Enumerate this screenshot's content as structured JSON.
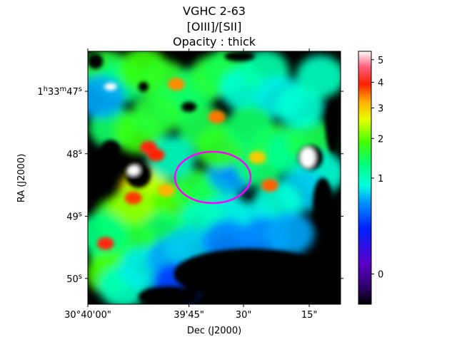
{
  "chart_data": {
    "type": "heatmap",
    "title_lines": [
      "VGHC 2-63",
      "[OIII]/[SII]",
      "Opacity : thick"
    ],
    "xlabel": "Dec (J2000)",
    "ylabel": "RA (J2000)",
    "x_ticks": [
      "30°40'00\"",
      "39'45\"",
      "30\"",
      "15\""
    ],
    "y_ticks": [
      {
        "h": "1",
        "m": "33",
        "s": "47",
        "full": true
      },
      {
        "s": "48"
      },
      {
        "s": "49"
      },
      {
        "s": "50"
      }
    ],
    "colorbar": {
      "colormap": "gist_ncar-like (black, purple, blue, cyan, green, yellow, orange, red, pink, white)",
      "scale": "nonlinear (sqrt-like)",
      "range": [
        -0.1,
        5.4
      ],
      "ticks": [
        "0",
        "1",
        "2",
        "3",
        "4",
        "5"
      ],
      "tick_values": [
        0,
        1,
        2,
        3,
        4,
        5
      ]
    },
    "annotation": {
      "shape": "ellipse",
      "color": "#ff00ff"
    },
    "masked_color": "#ffffff",
    "background_color": "#000000",
    "blobs": [
      {
        "x": 0.22,
        "y": 0.55,
        "v": 2.8
      },
      {
        "x": 0.25,
        "y": 0.57,
        "v": 2.4
      },
      {
        "x": 0.12,
        "y": 0.66,
        "v": 1.8
      },
      {
        "x": 0.18,
        "y": 0.62,
        "v": 2.2
      },
      {
        "x": 0.35,
        "y": 0.6,
        "v": 1.9
      },
      {
        "x": 0.43,
        "y": 0.55,
        "v": 1.6
      },
      {
        "x": 0.5,
        "y": 0.58,
        "v": 1.5
      },
      {
        "x": 0.57,
        "y": 0.48,
        "v": 0.6
      },
      {
        "x": 0.6,
        "y": 0.43,
        "v": 0.5
      },
      {
        "x": 0.68,
        "y": 0.45,
        "v": 1.4
      },
      {
        "x": 0.74,
        "y": 0.37,
        "v": 1.6
      },
      {
        "x": 0.8,
        "y": 0.4,
        "v": 1.2
      },
      {
        "x": 0.88,
        "y": 0.35,
        "v": 1.5
      },
      {
        "x": 0.92,
        "y": 0.48,
        "v": 0.9
      },
      {
        "x": 0.85,
        "y": 0.55,
        "v": 0.7
      },
      {
        "x": 0.75,
        "y": 0.6,
        "v": 0.9
      },
      {
        "x": 0.65,
        "y": 0.68,
        "v": 0.8
      },
      {
        "x": 0.55,
        "y": 0.65,
        "v": 0.8
      },
      {
        "x": 0.45,
        "y": 0.68,
        "v": 1.0
      },
      {
        "x": 0.3,
        "y": 0.72,
        "v": 1.4
      },
      {
        "x": 0.18,
        "y": 0.76,
        "v": 1.6
      },
      {
        "x": 0.1,
        "y": 0.8,
        "v": 1.5
      },
      {
        "x": 0.06,
        "y": 0.72,
        "v": 1.3
      },
      {
        "x": 0.09,
        "y": 0.88,
        "v": 1.9
      },
      {
        "x": 0.14,
        "y": 0.93,
        "v": 1.0
      },
      {
        "x": 0.22,
        "y": 0.86,
        "v": 0.8
      },
      {
        "x": 0.33,
        "y": 0.82,
        "v": 0.6
      },
      {
        "x": 0.4,
        "y": 0.78,
        "v": 0.7
      },
      {
        "x": 0.55,
        "y": 0.75,
        "v": 0.5
      },
      {
        "x": 0.7,
        "y": 0.74,
        "v": 0.5
      },
      {
        "x": 0.8,
        "y": 0.72,
        "v": 0.6
      },
      {
        "x": 0.35,
        "y": 0.92,
        "v": 0.3
      },
      {
        "x": 0.07,
        "y": 0.08,
        "v": 1.6
      },
      {
        "x": 0.14,
        "y": 0.12,
        "v": 1.3
      },
      {
        "x": 0.22,
        "y": 0.07,
        "v": 1.8
      },
      {
        "x": 0.3,
        "y": 0.12,
        "v": 1.7
      },
      {
        "x": 0.35,
        "y": 0.2,
        "v": 1.5
      },
      {
        "x": 0.42,
        "y": 0.15,
        "v": 1.4
      },
      {
        "x": 0.5,
        "y": 0.1,
        "v": 1.6
      },
      {
        "x": 0.56,
        "y": 0.07,
        "v": 1.5
      },
      {
        "x": 0.62,
        "y": 0.15,
        "v": 0.9
      },
      {
        "x": 0.7,
        "y": 0.08,
        "v": 1.1
      },
      {
        "x": 0.76,
        "y": 0.18,
        "v": 0.8
      },
      {
        "x": 0.84,
        "y": 0.22,
        "v": 0.9
      },
      {
        "x": 0.92,
        "y": 0.1,
        "v": 1.0
      },
      {
        "x": 0.1,
        "y": 0.3,
        "v": 1.4
      },
      {
        "x": 0.2,
        "y": 0.32,
        "v": 1.8
      },
      {
        "x": 0.27,
        "y": 0.25,
        "v": 1.6
      },
      {
        "x": 0.45,
        "y": 0.3,
        "v": 1.5
      },
      {
        "x": 0.52,
        "y": 0.38,
        "v": 1.7
      },
      {
        "x": 0.64,
        "y": 0.3,
        "v": 1.4
      },
      {
        "x": 0.33,
        "y": 0.42,
        "v": 1.0
      },
      {
        "x": 0.05,
        "y": 0.18,
        "v": 0.6
      }
    ],
    "hot_spots": [
      {
        "x": 0.51,
        "y": 0.26,
        "v": 3.5
      },
      {
        "x": 0.31,
        "y": 0.55,
        "v": 3.2
      },
      {
        "x": 0.18,
        "y": 0.58,
        "v": 3.8
      },
      {
        "x": 0.72,
        "y": 0.53,
        "v": 3.6
      },
      {
        "x": 0.07,
        "y": 0.76,
        "v": 4.0
      },
      {
        "x": 0.35,
        "y": 0.13,
        "v": 3.4
      },
      {
        "x": 0.27,
        "y": 0.41,
        "v": 3.9
      },
      {
        "x": 0.67,
        "y": 0.42,
        "v": 3.0
      },
      {
        "x": 0.24,
        "y": 0.38,
        "v": 4.0
      }
    ],
    "masked_regions": [
      {
        "x": 0.04,
        "y": 0.47,
        "rx": 0.04,
        "ry": 0.08
      },
      {
        "x": 0.2,
        "y": 0.49,
        "rx": 0.05,
        "ry": 0.05
      },
      {
        "x": 0.09,
        "y": 0.39,
        "rx": 0.04,
        "ry": 0.04
      },
      {
        "x": 0.88,
        "y": 0.42,
        "rx": 0.05,
        "ry": 0.05
      },
      {
        "x": 0.93,
        "y": 0.6,
        "rx": 0.04,
        "ry": 0.1
      },
      {
        "x": 0.64,
        "y": 0.88,
        "rx": 0.3,
        "ry": 0.1
      },
      {
        "x": 0.32,
        "y": 0.97,
        "rx": 0.12,
        "ry": 0.04
      },
      {
        "x": 0.97,
        "y": 0.3,
        "rx": 0.03,
        "ry": 0.1
      },
      {
        "x": 0.03,
        "y": 0.04,
        "rx": 0.03,
        "ry": 0.03
      },
      {
        "x": 0.6,
        "y": 0.02,
        "rx": 0.06,
        "ry": 0.02
      },
      {
        "x": 0.95,
        "y": 0.92,
        "rx": 0.05,
        "ry": 0.08
      },
      {
        "x": 0.4,
        "y": 0.22,
        "rx": 0.03,
        "ry": 0.02
      },
      {
        "x": 0.22,
        "y": 0.14,
        "rx": 0.02,
        "ry": 0.02
      }
    ],
    "white_patches": [
      {
        "x": 0.18,
        "y": 0.47,
        "rx": 0.025,
        "ry": 0.02
      },
      {
        "x": 0.87,
        "y": 0.42,
        "rx": 0.03,
        "ry": 0.04
      },
      {
        "x": 0.09,
        "y": 0.14,
        "rx": 0.025,
        "ry": 0.015
      }
    ]
  }
}
